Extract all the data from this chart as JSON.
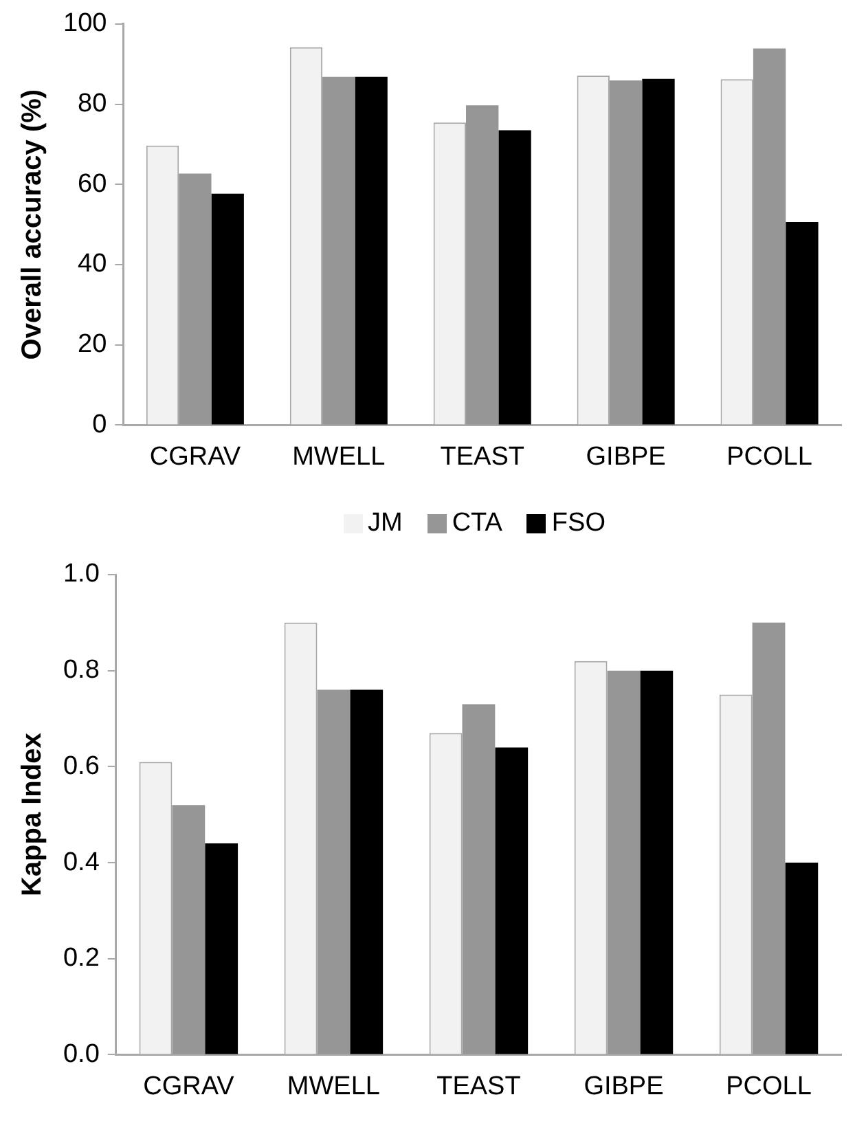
{
  "chart_data": [
    {
      "type": "bar",
      "ylabel": "Overall accuracy (%)",
      "categories": [
        "CGRAV",
        "MWELL",
        "TEAST",
        "GIBPE",
        "PCOLL"
      ],
      "series": [
        {
          "name": "JM",
          "color": "#f2f2f2",
          "values": [
            69.7,
            94.2,
            75.4,
            87.1,
            86.2
          ]
        },
        {
          "name": "CTA",
          "color": "#969696",
          "values": [
            62.7,
            86.8,
            79.7,
            85.9,
            93.9
          ]
        },
        {
          "name": "FSO",
          "color": "#000000",
          "values": [
            57.7,
            86.8,
            73.5,
            86.3,
            50.6
          ]
        }
      ],
      "ylim": [
        0,
        100
      ],
      "yticks": [
        0,
        20,
        40,
        60,
        80,
        100
      ],
      "grid": false,
      "legend": "bottom"
    },
    {
      "type": "bar",
      "ylabel": "Kappa Index",
      "categories": [
        "CGRAV",
        "MWELL",
        "TEAST",
        "GIBPE",
        "PCOLL"
      ],
      "series": [
        {
          "color": "#f2f2f2",
          "values": [
            0.61,
            0.9,
            0.67,
            0.82,
            0.75
          ]
        },
        {
          "color": "#969696",
          "values": [
            0.52,
            0.76,
            0.73,
            0.8,
            0.9
          ]
        },
        {
          "color": "#000000",
          "values": [
            0.44,
            0.76,
            0.64,
            0.8,
            0.4
          ]
        }
      ],
      "ylim": [
        0,
        1
      ],
      "yticks": [
        {
          "value": 0,
          "label": "0.0"
        },
        {
          "value": 0.2,
          "label": "0.2"
        },
        {
          "value": 0.4,
          "label": "0.4"
        },
        {
          "value": 0.6,
          "label": "0.6"
        },
        {
          "value": 0.8,
          "label": "0.8"
        },
        {
          "value": 1,
          "label": "1.0"
        }
      ],
      "grid": false
    }
  ]
}
